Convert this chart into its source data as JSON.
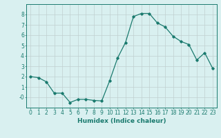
{
  "x": [
    0,
    1,
    2,
    3,
    4,
    5,
    6,
    7,
    8,
    9,
    10,
    11,
    12,
    13,
    14,
    15,
    16,
    17,
    18,
    19,
    20,
    21,
    22,
    23
  ],
  "y": [
    2.0,
    1.9,
    1.5,
    0.4,
    0.4,
    -0.5,
    -0.2,
    -0.2,
    -0.3,
    -0.35,
    1.6,
    3.8,
    5.3,
    7.8,
    8.1,
    8.1,
    7.2,
    6.8,
    5.9,
    5.4,
    5.1,
    3.6,
    4.3,
    2.8
  ],
  "line_color": "#1a7a6e",
  "marker": "D",
  "marker_size": 1.8,
  "linewidth": 0.9,
  "bg_color": "#d9f0f0",
  "grid_color": "#c0d0d0",
  "xlabel": "Humidex (Indice chaleur)",
  "xlabel_fontsize": 6.5,
  "tick_fontsize": 5.5,
  "xlim": [
    -0.5,
    23.5
  ],
  "ylim": [
    -1.0,
    9.0
  ],
  "yticks": [
    0,
    1,
    2,
    3,
    4,
    5,
    6,
    7,
    8
  ],
  "ytick_labels": [
    "-0",
    "1",
    "2",
    "3",
    "4",
    "5",
    "6",
    "7",
    "8"
  ],
  "xticks": [
    0,
    1,
    2,
    3,
    4,
    5,
    6,
    7,
    8,
    9,
    10,
    11,
    12,
    13,
    14,
    15,
    16,
    17,
    18,
    19,
    20,
    21,
    22,
    23
  ]
}
